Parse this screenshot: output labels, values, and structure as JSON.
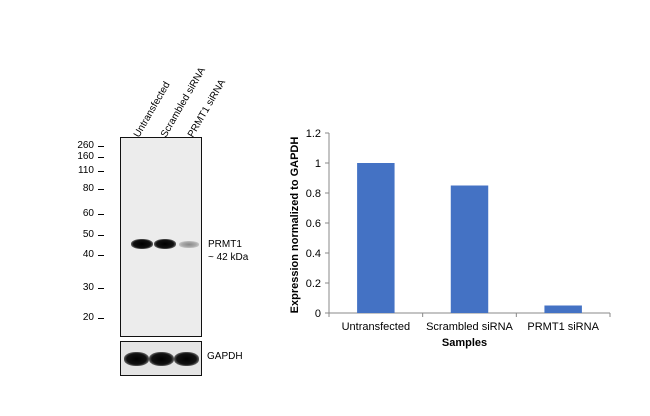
{
  "blot": {
    "lanes": [
      "Untransfected",
      "Scrambled siRNA",
      "PRMT1 siRNA"
    ],
    "markers": [
      "260",
      "160",
      "110",
      "80",
      "60",
      "50",
      "40",
      "30",
      "20"
    ],
    "target_label": "PRMT1",
    "target_size": "~ 42 kDa",
    "control_label": "GAPDH"
  },
  "chart_data": {
    "type": "bar",
    "categories": [
      "Untransfected",
      "Scrambled siRNA",
      "PRMT1 siRNA"
    ],
    "values": [
      1.0,
      0.85,
      0.05
    ],
    "xlabel": "Samples",
    "ylabel": "Expression  normalized to GAPDH",
    "ylim": [
      0,
      1.2
    ],
    "yticks": [
      0,
      0.2,
      0.4,
      0.6,
      0.8,
      1,
      1.2
    ],
    "grid": false,
    "bar_color": "#4472c4"
  }
}
